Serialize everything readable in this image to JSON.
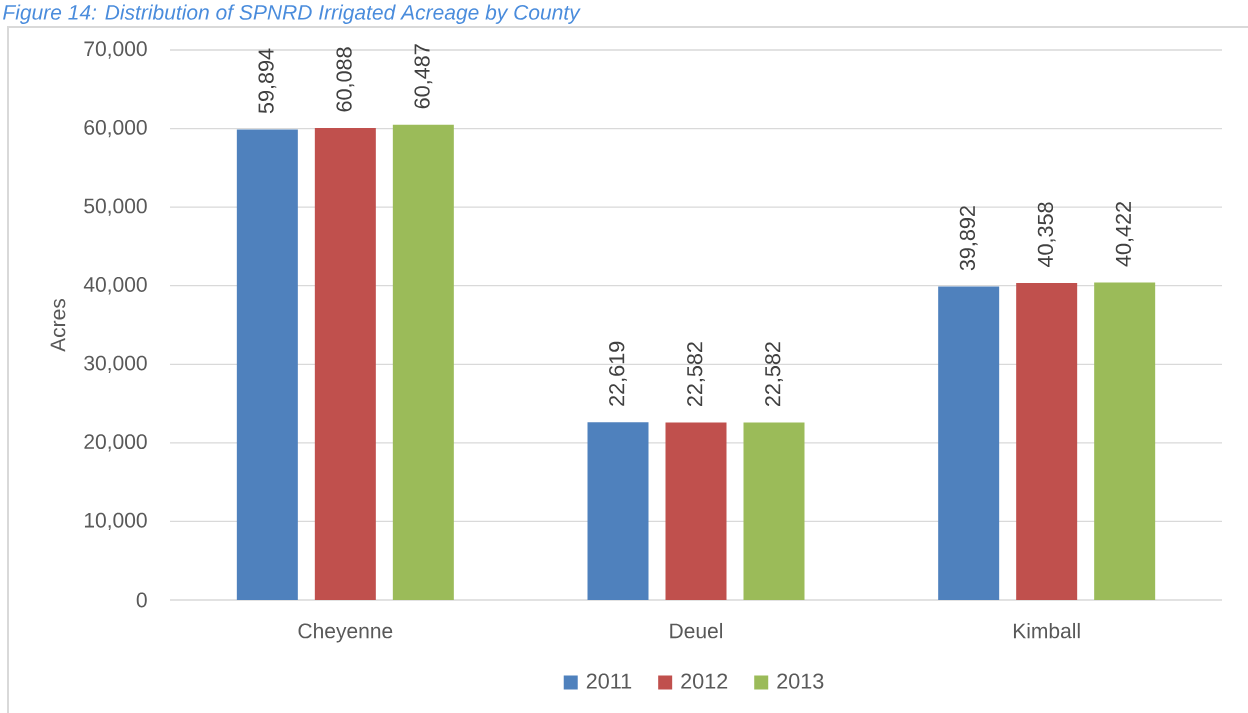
{
  "chart_data": {
    "type": "bar",
    "title": "Figure 14: Distribution of SPNRD Irrigated Acreage by County",
    "ylabel": "Acres",
    "categories": [
      "Cheyenne",
      "Deuel",
      "Kimball"
    ],
    "series": [
      {
        "name": "2011",
        "color": "#4f81bd",
        "values": [
          59894,
          22619,
          39892
        ],
        "value_labels": [
          "59,894",
          "22,619",
          "39,892"
        ]
      },
      {
        "name": "2012",
        "color": "#c0504d",
        "values": [
          60088,
          22582,
          40358
        ],
        "value_labels": [
          "60,088",
          "22,582",
          "40,358"
        ]
      },
      {
        "name": "2013",
        "color": "#9bbb59",
        "values": [
          60487,
          22582,
          40422
        ],
        "value_labels": [
          "60,487",
          "22,582",
          "40,422"
        ]
      }
    ],
    "ylim": [
      0,
      70000
    ],
    "yticks": [
      0,
      {
        "value": 10000,
        "label": "10,000"
      },
      {
        "value": 20000,
        "label": "20,000"
      },
      {
        "value": 30000,
        "label": "30,000"
      },
      {
        "value": 40000,
        "label": "40,000"
      },
      {
        "value": 50000,
        "label": "50,000"
      },
      {
        "value": 60000,
        "label": "60,000"
      },
      {
        "value": 70000,
        "label": "70,000"
      }
    ],
    "grid": "y",
    "legend": "bottom"
  }
}
